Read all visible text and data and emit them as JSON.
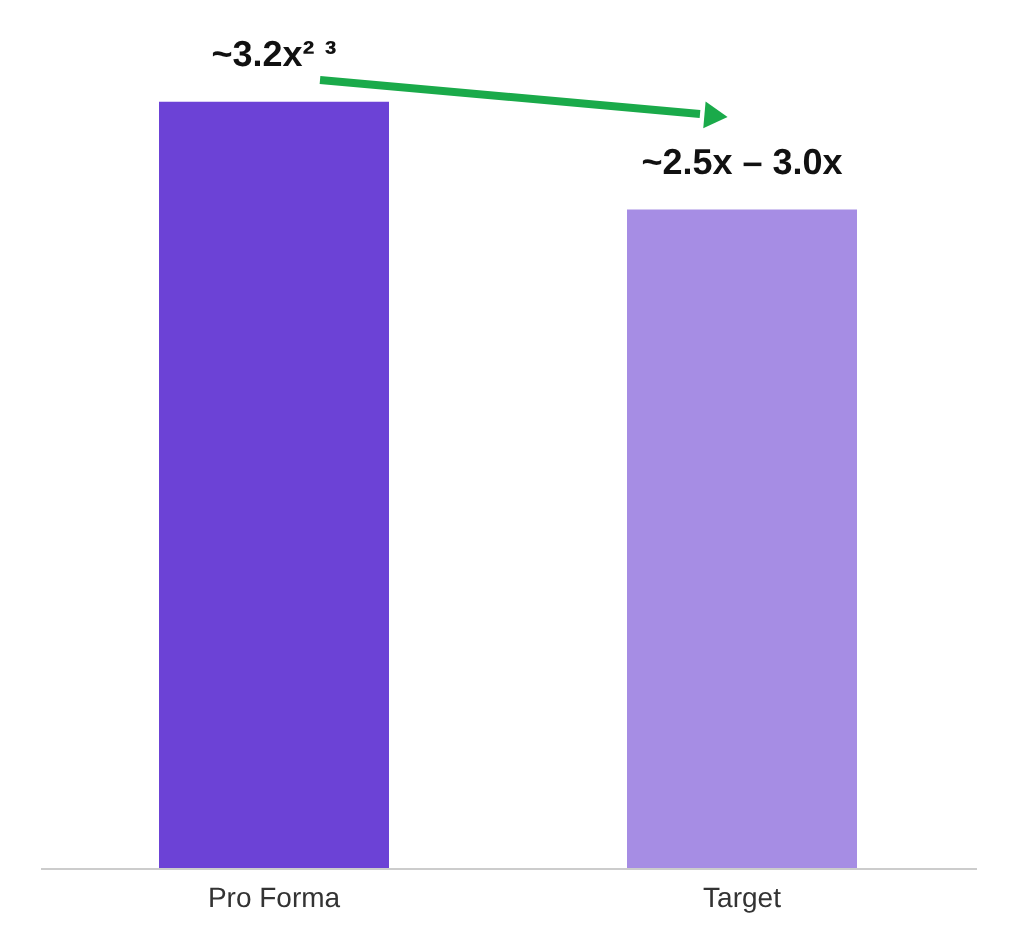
{
  "chart_data": {
    "type": "bar",
    "categories": [
      "Pro Forma",
      "Target"
    ],
    "values": [
      3.2,
      2.75
    ],
    "colors": [
      "#6c42d6",
      "#a68de4"
    ],
    "value_labels": [
      "~3.2x² ³",
      "~2.5x – 3.0x"
    ],
    "grid": false
  }
}
